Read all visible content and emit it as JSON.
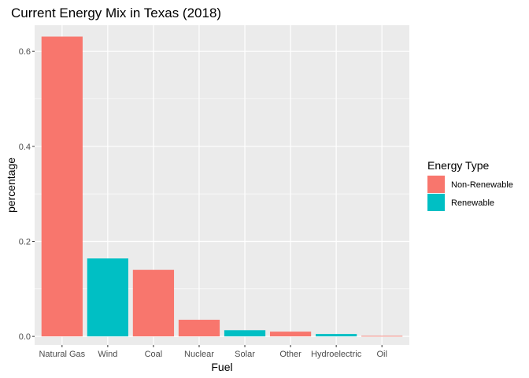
{
  "chart_data": {
    "type": "bar",
    "title": "Current Energy Mix in Texas (2018)",
    "xlabel": "Fuel",
    "ylabel": "percentage",
    "ylim": [
      -0.018,
      0.655
    ],
    "yticks": [
      0.0,
      0.2,
      0.4,
      0.6
    ],
    "ytick_labels": [
      "0.0",
      "0.2",
      "0.4",
      "0.6"
    ],
    "categories": [
      "Natural Gas",
      "Wind",
      "Coal",
      "Nuclear",
      "Solar",
      "Other",
      "Hydroelectric",
      "Oil"
    ],
    "values": [
      0.631,
      0.164,
      0.14,
      0.035,
      0.013,
      0.01,
      0.005,
      0.001
    ],
    "fill_groups": [
      "Non-Renewable",
      "Renewable",
      "Non-Renewable",
      "Non-Renewable",
      "Renewable",
      "Non-Renewable",
      "Renewable",
      "Non-Renewable"
    ],
    "legend": {
      "title": "Energy Type",
      "position": "right",
      "entries": [
        {
          "label": "Non-Renewable",
          "color": "#F8766D"
        },
        {
          "label": "Renewable",
          "color": "#00BFC4"
        }
      ]
    },
    "panel_background": "#EBEBEB",
    "grid": true,
    "grid_color": "#FFFFFF"
  }
}
